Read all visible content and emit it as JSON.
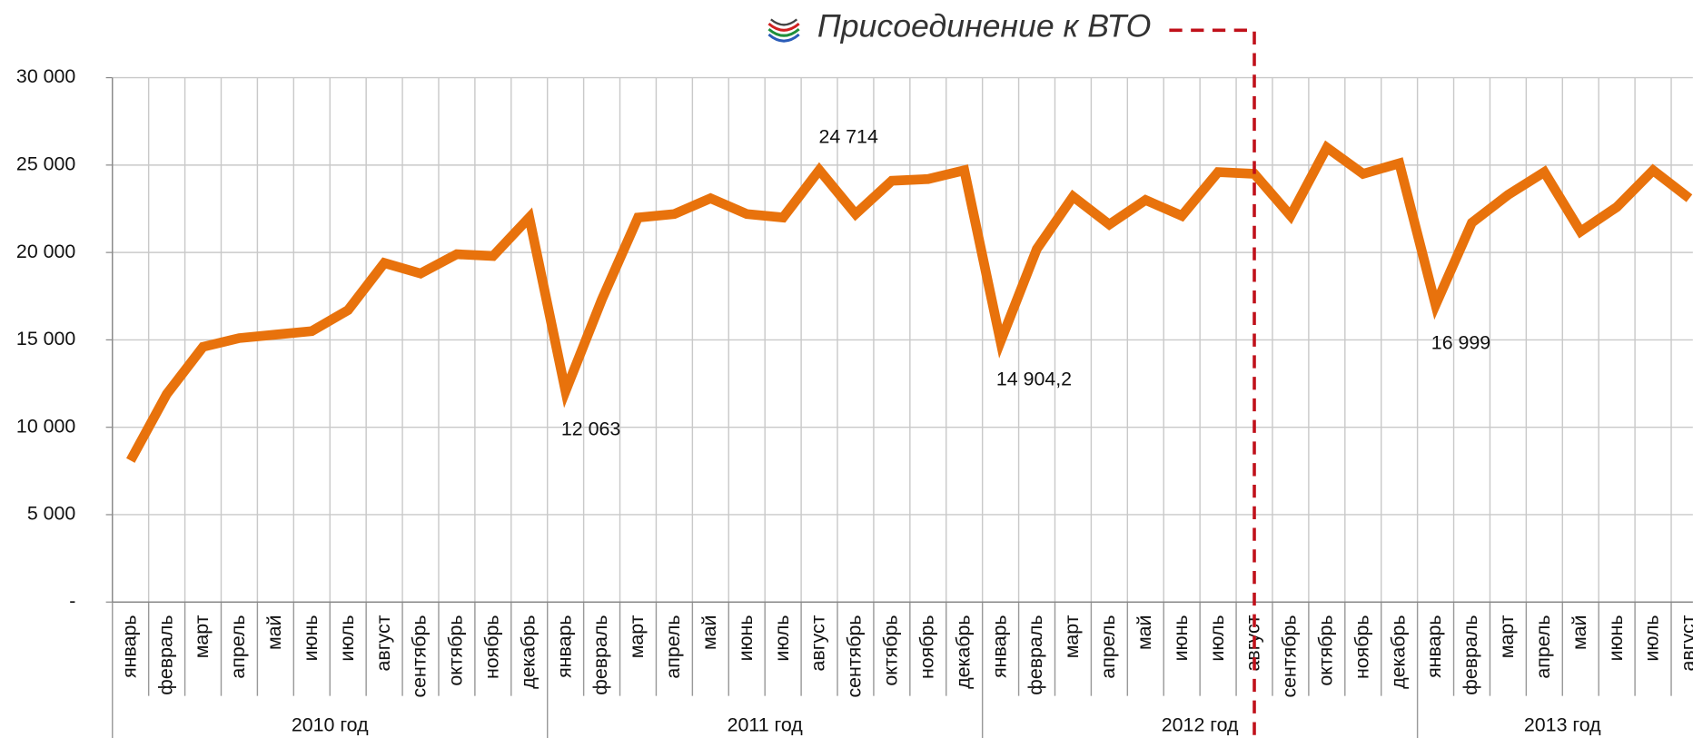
{
  "chart_data": {
    "type": "line",
    "annotation": "Присоединение к ВТО",
    "categories": [
      "январь",
      "февраль",
      "март",
      "апрель",
      "май",
      "июнь",
      "июль",
      "август",
      "сентябрь",
      "октябрь",
      "ноябрь",
      "декабрь",
      "январь",
      "февраль",
      "март",
      "апрель",
      "май",
      "июнь",
      "июль",
      "август",
      "сентябрь",
      "октябрь",
      "ноябрь",
      "декабрь",
      "январь",
      "февраль",
      "март",
      "апрель",
      "май",
      "июнь",
      "июль",
      "август",
      "сентябрь",
      "октябрь",
      "ноябрь",
      "декабрь",
      "январь",
      "февраль",
      "март",
      "апрель",
      "май",
      "июнь",
      "июль",
      "август"
    ],
    "year_groups": [
      "2010 год",
      "2011 год",
      "2012 год",
      "2013 год"
    ],
    "series": [
      {
        "color": "#e8720c",
        "values": [
          8100,
          11900,
          14600,
          15100,
          15300,
          15500,
          16700,
          19400,
          18800,
          19900,
          19800,
          22000,
          12063,
          17300,
          22000,
          22200,
          23100,
          22200,
          22000,
          24714,
          22200,
          24100,
          24200,
          24700,
          14904.2,
          20200,
          23200,
          21600,
          23000,
          22100,
          24600,
          24500,
          22100,
          26000,
          24500,
          25100,
          16999,
          21700,
          23300,
          24600,
          21200,
          22600,
          24700,
          23100
        ],
        "value_labels": [
          null,
          null,
          null,
          null,
          null,
          null,
          null,
          null,
          null,
          null,
          null,
          null,
          "12 063",
          null,
          null,
          null,
          null,
          null,
          null,
          "24 714",
          null,
          null,
          null,
          null,
          "14 904,2",
          null,
          null,
          null,
          null,
          null,
          null,
          null,
          null,
          null,
          null,
          null,
          "16 999",
          null,
          null,
          null,
          null,
          null,
          null,
          null
        ]
      }
    ],
    "annotation_category": 31,
    "ylim": [
      0,
      30000
    ],
    "yticks": [
      {
        "value": 0,
        "label": "-"
      },
      {
        "value": 5000,
        "label": "5 000"
      },
      {
        "value": 10000,
        "label": "10 000"
      },
      {
        "value": 15000,
        "label": "15 000"
      },
      {
        "value": 20000,
        "label": "20 000"
      },
      {
        "value": 25000,
        "label": "25 000"
      },
      {
        "value": 30000,
        "label": "30 000"
      }
    ],
    "grid": true
  }
}
